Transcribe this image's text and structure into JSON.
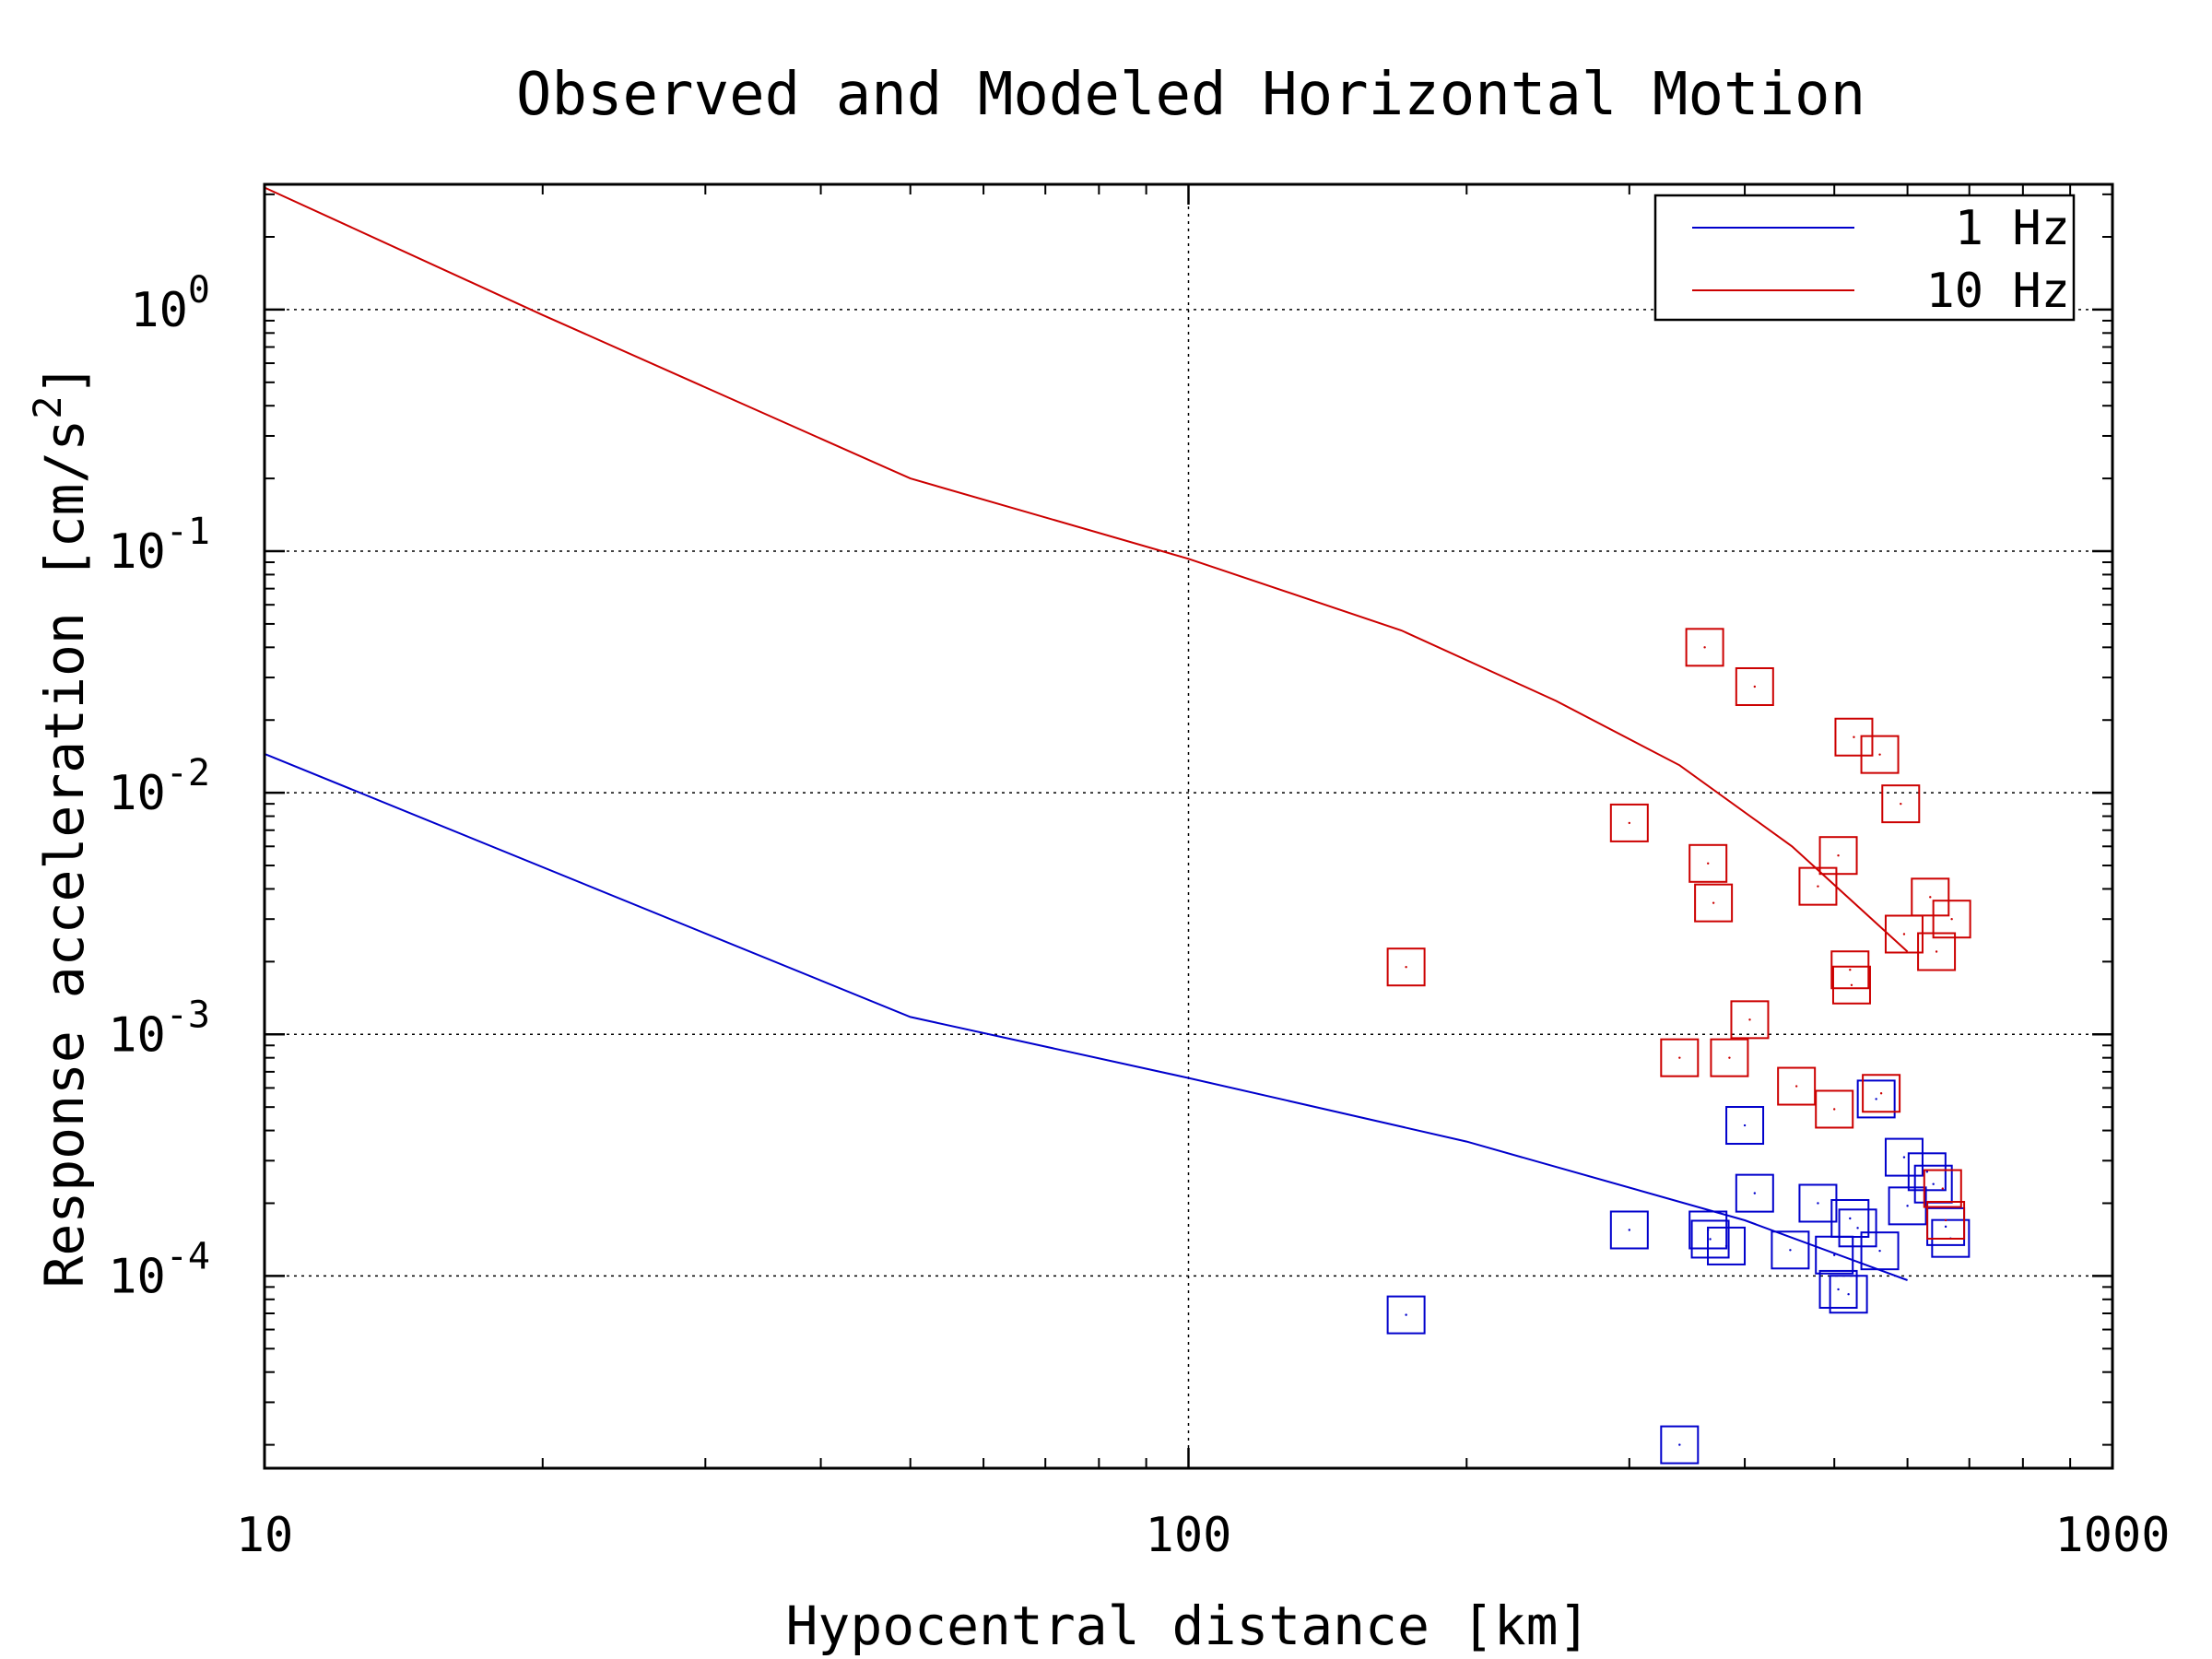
{
  "chart_data": {
    "type": "scatter",
    "title": "Observed and Modeled Horizontal Motion",
    "xlabel": "Hypocentral distance [km]",
    "ylabel": "Response acceleration [cm/s",
    "ylabel_sup": "2",
    "ylabel_tail": "]",
    "xscale": "log",
    "yscale": "log",
    "xlim": [
      10,
      1000
    ],
    "ylim": [
      1.6e-05,
      3.3
    ],
    "grid": true,
    "legend_position": "top-right",
    "x_ticks": [
      {
        "value": 10,
        "label": "10"
      },
      {
        "value": 100,
        "label": "100"
      },
      {
        "value": 1000,
        "label": "1000"
      }
    ],
    "y_ticks": [
      {
        "value": 1,
        "base": "10",
        "exp": "0"
      },
      {
        "value": 0.1,
        "base": "10",
        "exp": "-1"
      },
      {
        "value": 0.01,
        "base": "10",
        "exp": "-2"
      },
      {
        "value": 0.001,
        "base": "10",
        "exp": "-3"
      },
      {
        "value": 0.0001,
        "base": "10",
        "exp": "-4"
      }
    ],
    "series": [
      {
        "name": "1 Hz",
        "color": "#0000cc",
        "model_line": [
          {
            "x": 10,
            "y": 0.0145
          },
          {
            "x": 50,
            "y": 0.00118
          },
          {
            "x": 100,
            "y": 0.00066
          },
          {
            "x": 200,
            "y": 0.00036
          },
          {
            "x": 400,
            "y": 0.00017
          },
          {
            "x": 600,
            "y": 9.6e-05
          }
        ],
        "observed": [
          {
            "x": 172,
            "y": 6.9e-05
          },
          {
            "x": 300,
            "y": 0.000155
          },
          {
            "x": 340,
            "y": 2e-05
          },
          {
            "x": 365,
            "y": 0.000155
          },
          {
            "x": 367,
            "y": 0.000142
          },
          {
            "x": 382,
            "y": 0.000133
          },
          {
            "x": 400,
            "y": 0.00042
          },
          {
            "x": 410,
            "y": 0.00022
          },
          {
            "x": 448,
            "y": 0.000128
          },
          {
            "x": 480,
            "y": 0.0002
          },
          {
            "x": 500,
            "y": 0.000122
          },
          {
            "x": 505,
            "y": 8.8e-05
          },
          {
            "x": 518,
            "y": 8.4e-05
          },
          {
            "x": 520,
            "y": 0.000173
          },
          {
            "x": 530,
            "y": 0.000158
          },
          {
            "x": 555,
            "y": 0.00054
          },
          {
            "x": 560,
            "y": 0.000127
          },
          {
            "x": 595,
            "y": 0.00031
          },
          {
            "x": 600,
            "y": 0.000195
          },
          {
            "x": 630,
            "y": 0.00027
          },
          {
            "x": 640,
            "y": 0.00024
          },
          {
            "x": 660,
            "y": 0.00016
          },
          {
            "x": 668,
            "y": 0.000143
          }
        ]
      },
      {
        "name": "10 Hz",
        "color": "#cc0000",
        "model_line": [
          {
            "x": 10,
            "y": 3.2
          },
          {
            "x": 20,
            "y": 0.95
          },
          {
            "x": 50,
            "y": 0.2
          },
          {
            "x": 100,
            "y": 0.093
          },
          {
            "x": 170,
            "y": 0.047
          },
          {
            "x": 250,
            "y": 0.024
          },
          {
            "x": 340,
            "y": 0.013
          },
          {
            "x": 450,
            "y": 0.006
          },
          {
            "x": 600,
            "y": 0.0022
          }
        ],
        "observed": [
          {
            "x": 172,
            "y": 0.0019
          },
          {
            "x": 300,
            "y": 0.0075
          },
          {
            "x": 340,
            "y": 0.0008
          },
          {
            "x": 362,
            "y": 0.04
          },
          {
            "x": 365,
            "y": 0.0051
          },
          {
            "x": 370,
            "y": 0.0035
          },
          {
            "x": 385,
            "y": 0.0008
          },
          {
            "x": 405,
            "y": 0.00115
          },
          {
            "x": 410,
            "y": 0.0275
          },
          {
            "x": 455,
            "y": 0.00061
          },
          {
            "x": 480,
            "y": 0.0041
          },
          {
            "x": 500,
            "y": 0.00049
          },
          {
            "x": 505,
            "y": 0.0055
          },
          {
            "x": 520,
            "y": 0.00185
          },
          {
            "x": 522,
            "y": 0.0016
          },
          {
            "x": 525,
            "y": 0.017
          },
          {
            "x": 560,
            "y": 0.0144
          },
          {
            "x": 562,
            "y": 0.00057
          },
          {
            "x": 590,
            "y": 0.009
          },
          {
            "x": 595,
            "y": 0.0026
          },
          {
            "x": 635,
            "y": 0.0037
          },
          {
            "x": 645,
            "y": 0.0022
          },
          {
            "x": 655,
            "y": 0.00023
          },
          {
            "x": 660,
            "y": 0.00017
          },
          {
            "x": 670,
            "y": 0.003
          }
        ]
      }
    ]
  }
}
